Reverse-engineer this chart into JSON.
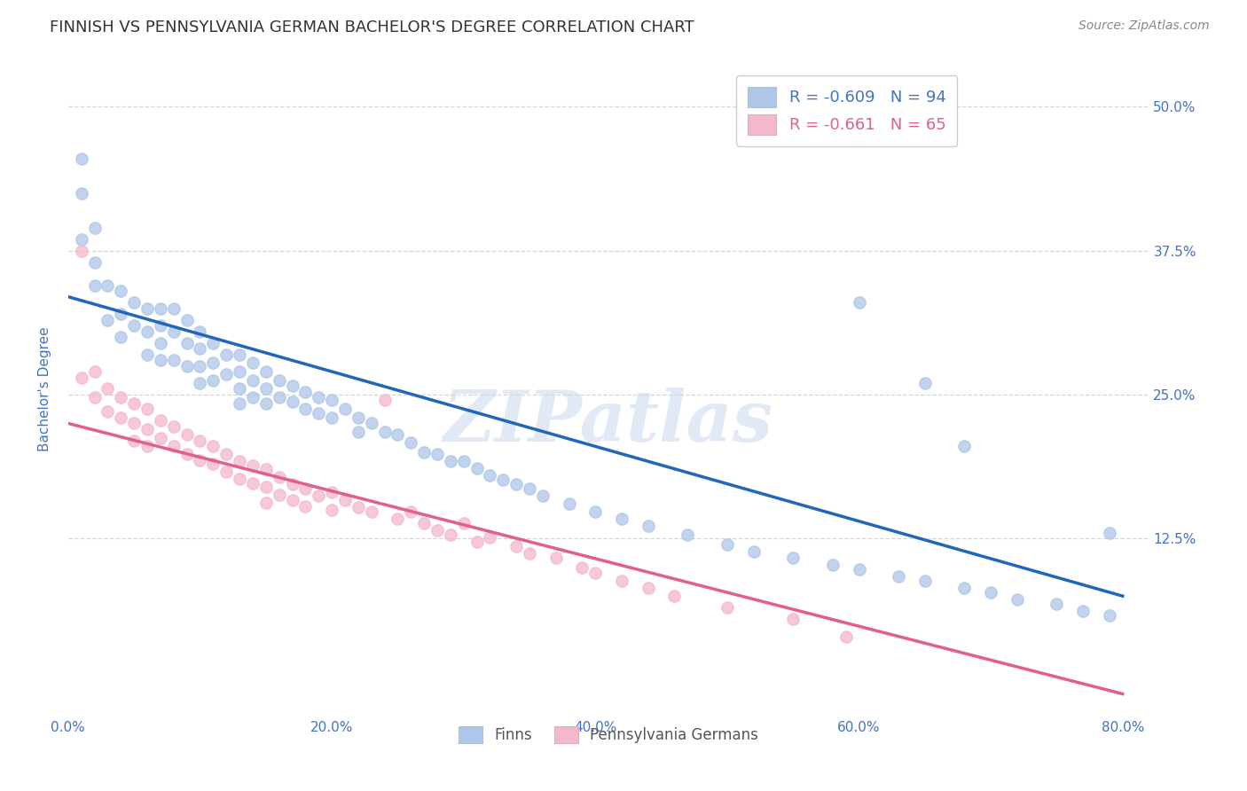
{
  "title": "FINNISH VS PENNSYLVANIA GERMAN BACHELOR'S DEGREE CORRELATION CHART",
  "source": "Source: ZipAtlas.com",
  "ylabel": "Bachelor's Degree",
  "xlabel_ticks": [
    "0.0%",
    "20.0%",
    "40.0%",
    "60.0%",
    "80.0%"
  ],
  "ytick_labels": [
    "12.5%",
    "25.0%",
    "37.5%",
    "50.0%"
  ],
  "xlim": [
    0.0,
    0.82
  ],
  "ylim": [
    -0.03,
    0.54
  ],
  "blue_R": -0.609,
  "blue_N": 94,
  "pink_R": -0.661,
  "pink_N": 65,
  "blue_color": "#aec6e8",
  "pink_color": "#f5b8cb",
  "blue_line_color": "#2266bb",
  "pink_line_color": "#e0608a",
  "title_color": "#333333",
  "axis_label_color": "#4472c4",
  "watermark": "ZIPatlas",
  "blue_line_x": [
    0.0,
    0.8
  ],
  "blue_line_y": [
    0.335,
    0.075
  ],
  "pink_line_x": [
    0.0,
    0.8
  ],
  "pink_line_y": [
    0.225,
    -0.01
  ],
  "blue_scatter_x": [
    0.01,
    0.01,
    0.01,
    0.02,
    0.02,
    0.02,
    0.03,
    0.03,
    0.04,
    0.04,
    0.04,
    0.05,
    0.05,
    0.06,
    0.06,
    0.06,
    0.07,
    0.07,
    0.07,
    0.07,
    0.08,
    0.08,
    0.08,
    0.09,
    0.09,
    0.09,
    0.1,
    0.1,
    0.1,
    0.1,
    0.11,
    0.11,
    0.11,
    0.12,
    0.12,
    0.13,
    0.13,
    0.13,
    0.13,
    0.14,
    0.14,
    0.14,
    0.15,
    0.15,
    0.15,
    0.16,
    0.16,
    0.17,
    0.17,
    0.18,
    0.18,
    0.19,
    0.19,
    0.2,
    0.2,
    0.21,
    0.22,
    0.22,
    0.23,
    0.24,
    0.25,
    0.26,
    0.27,
    0.28,
    0.29,
    0.3,
    0.31,
    0.32,
    0.33,
    0.34,
    0.35,
    0.36,
    0.38,
    0.4,
    0.42,
    0.44,
    0.47,
    0.5,
    0.52,
    0.55,
    0.58,
    0.6,
    0.63,
    0.65,
    0.68,
    0.7,
    0.72,
    0.75,
    0.77,
    0.79,
    0.6,
    0.65,
    0.68,
    0.79
  ],
  "blue_scatter_y": [
    0.455,
    0.425,
    0.385,
    0.395,
    0.365,
    0.345,
    0.345,
    0.315,
    0.34,
    0.32,
    0.3,
    0.33,
    0.31,
    0.325,
    0.305,
    0.285,
    0.325,
    0.31,
    0.295,
    0.28,
    0.325,
    0.305,
    0.28,
    0.315,
    0.295,
    0.275,
    0.305,
    0.29,
    0.275,
    0.26,
    0.295,
    0.278,
    0.262,
    0.285,
    0.268,
    0.285,
    0.27,
    0.255,
    0.242,
    0.278,
    0.262,
    0.248,
    0.27,
    0.255,
    0.242,
    0.262,
    0.248,
    0.258,
    0.244,
    0.252,
    0.238,
    0.248,
    0.234,
    0.245,
    0.23,
    0.238,
    0.23,
    0.218,
    0.225,
    0.218,
    0.215,
    0.208,
    0.2,
    0.198,
    0.192,
    0.192,
    0.186,
    0.18,
    0.176,
    0.172,
    0.168,
    0.162,
    0.155,
    0.148,
    0.142,
    0.136,
    0.128,
    0.12,
    0.114,
    0.108,
    0.102,
    0.098,
    0.092,
    0.088,
    0.082,
    0.078,
    0.072,
    0.068,
    0.062,
    0.058,
    0.33,
    0.26,
    0.205,
    0.13
  ],
  "pink_scatter_x": [
    0.01,
    0.01,
    0.02,
    0.02,
    0.03,
    0.03,
    0.04,
    0.04,
    0.05,
    0.05,
    0.05,
    0.06,
    0.06,
    0.06,
    0.07,
    0.07,
    0.08,
    0.08,
    0.09,
    0.09,
    0.1,
    0.1,
    0.11,
    0.11,
    0.12,
    0.12,
    0.13,
    0.13,
    0.14,
    0.14,
    0.15,
    0.15,
    0.15,
    0.16,
    0.16,
    0.17,
    0.17,
    0.18,
    0.18,
    0.19,
    0.2,
    0.2,
    0.21,
    0.22,
    0.23,
    0.24,
    0.25,
    0.26,
    0.27,
    0.28,
    0.29,
    0.3,
    0.31,
    0.32,
    0.34,
    0.35,
    0.37,
    0.39,
    0.4,
    0.42,
    0.44,
    0.46,
    0.5,
    0.55,
    0.59
  ],
  "pink_scatter_y": [
    0.375,
    0.265,
    0.27,
    0.248,
    0.255,
    0.235,
    0.248,
    0.23,
    0.242,
    0.225,
    0.21,
    0.238,
    0.22,
    0.205,
    0.228,
    0.212,
    0.222,
    0.205,
    0.215,
    0.198,
    0.21,
    0.193,
    0.205,
    0.19,
    0.198,
    0.183,
    0.192,
    0.177,
    0.188,
    0.173,
    0.185,
    0.17,
    0.156,
    0.178,
    0.163,
    0.172,
    0.158,
    0.168,
    0.153,
    0.162,
    0.165,
    0.15,
    0.158,
    0.152,
    0.148,
    0.245,
    0.142,
    0.148,
    0.138,
    0.132,
    0.128,
    0.138,
    0.122,
    0.126,
    0.118,
    0.112,
    0.108,
    0.1,
    0.095,
    0.088,
    0.082,
    0.075,
    0.065,
    0.055,
    0.04
  ]
}
